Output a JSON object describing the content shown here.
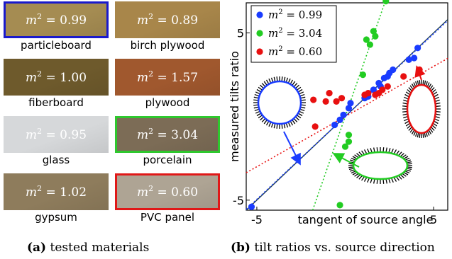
{
  "materials": [
    {
      "name": "particleboard",
      "value": "0.99",
      "color": "#a58c52",
      "border": "blue"
    },
    {
      "name": "birch plywood",
      "value": "0.89",
      "color": "#a8864a",
      "border": ""
    },
    {
      "name": "fiberboard",
      "value": "1.00",
      "color": "#6e5a2c",
      "border": ""
    },
    {
      "name": "plywood",
      "value": "1.57",
      "color": "#a0582e",
      "border": ""
    },
    {
      "name": "glass",
      "value": "0.95",
      "color": "#d6d8da",
      "border": ""
    },
    {
      "name": "porcelain",
      "value": "3.04",
      "color": "#7c6c56",
      "border": "green"
    },
    {
      "name": "gypsum",
      "value": "1.02",
      "color": "#8e7c5c",
      "border": ""
    },
    {
      "name": "PVC panel",
      "value": "0.60",
      "color": "#aea494",
      "border": "red"
    }
  ],
  "captions": {
    "a_label": "(a)",
    "a_text": "tested materials",
    "b_label": "(b)",
    "b_text": "tilt ratios vs. source direction"
  },
  "chart_data": {
    "type": "scatter",
    "xlabel": "tangent of source angle",
    "ylabel": "measured tilts ratio",
    "xlim": [
      -5.6,
      5.8
    ],
    "ylim": [
      -5.6,
      6.8
    ],
    "xticks": [
      "-5",
      "5"
    ],
    "yticks": [
      "-5",
      "5"
    ],
    "legend_position": "top-left",
    "series": [
      {
        "name": "m² = 0.99",
        "m2": "0.99",
        "color": "#1a3cff",
        "slope": 0.99,
        "x": [
          -5.3,
          -0.6,
          -0.3,
          -0.1,
          0.2,
          0.3,
          1.1,
          1.3,
          1.6,
          1.9,
          2.0,
          2.2,
          2.4,
          2.5,
          2.7,
          3.6,
          3.9,
          4.1
        ],
        "y": [
          -5.4,
          -0.5,
          -0.2,
          0.1,
          0.5,
          0.8,
          1.1,
          1.2,
          1.6,
          2.0,
          1.8,
          2.3,
          2.4,
          2.6,
          2.8,
          3.4,
          3.5,
          4.1
        ]
      },
      {
        "name": "m² = 3.04",
        "m2": "3.04",
        "color": "#22cc22",
        "slope": 3.04,
        "x": [
          -0.3,
          0.0,
          0.2,
          0.2,
          1.0,
          1.2,
          1.4,
          1.6,
          1.7,
          2.3
        ],
        "y": [
          -5.3,
          -1.8,
          -1.5,
          -1.1,
          2.5,
          4.6,
          4.3,
          5.1,
          4.8,
          6.9
        ]
      },
      {
        "name": "m² = 0.60",
        "m2": "0.60",
        "color": "#e81010",
        "slope": 0.6,
        "x": [
          -1.7,
          -1.8,
          -1.1,
          -0.9,
          -0.5,
          -0.2,
          1.1,
          1.3,
          1.7,
          1.9,
          2.1,
          2.4,
          3.3,
          4.2
        ],
        "y": [
          -0.6,
          1.0,
          0.9,
          1.4,
          0.9,
          1.1,
          1.3,
          1.4,
          1.3,
          1.4,
          1.6,
          1.8,
          2.4,
          2.8
        ]
      }
    ]
  }
}
